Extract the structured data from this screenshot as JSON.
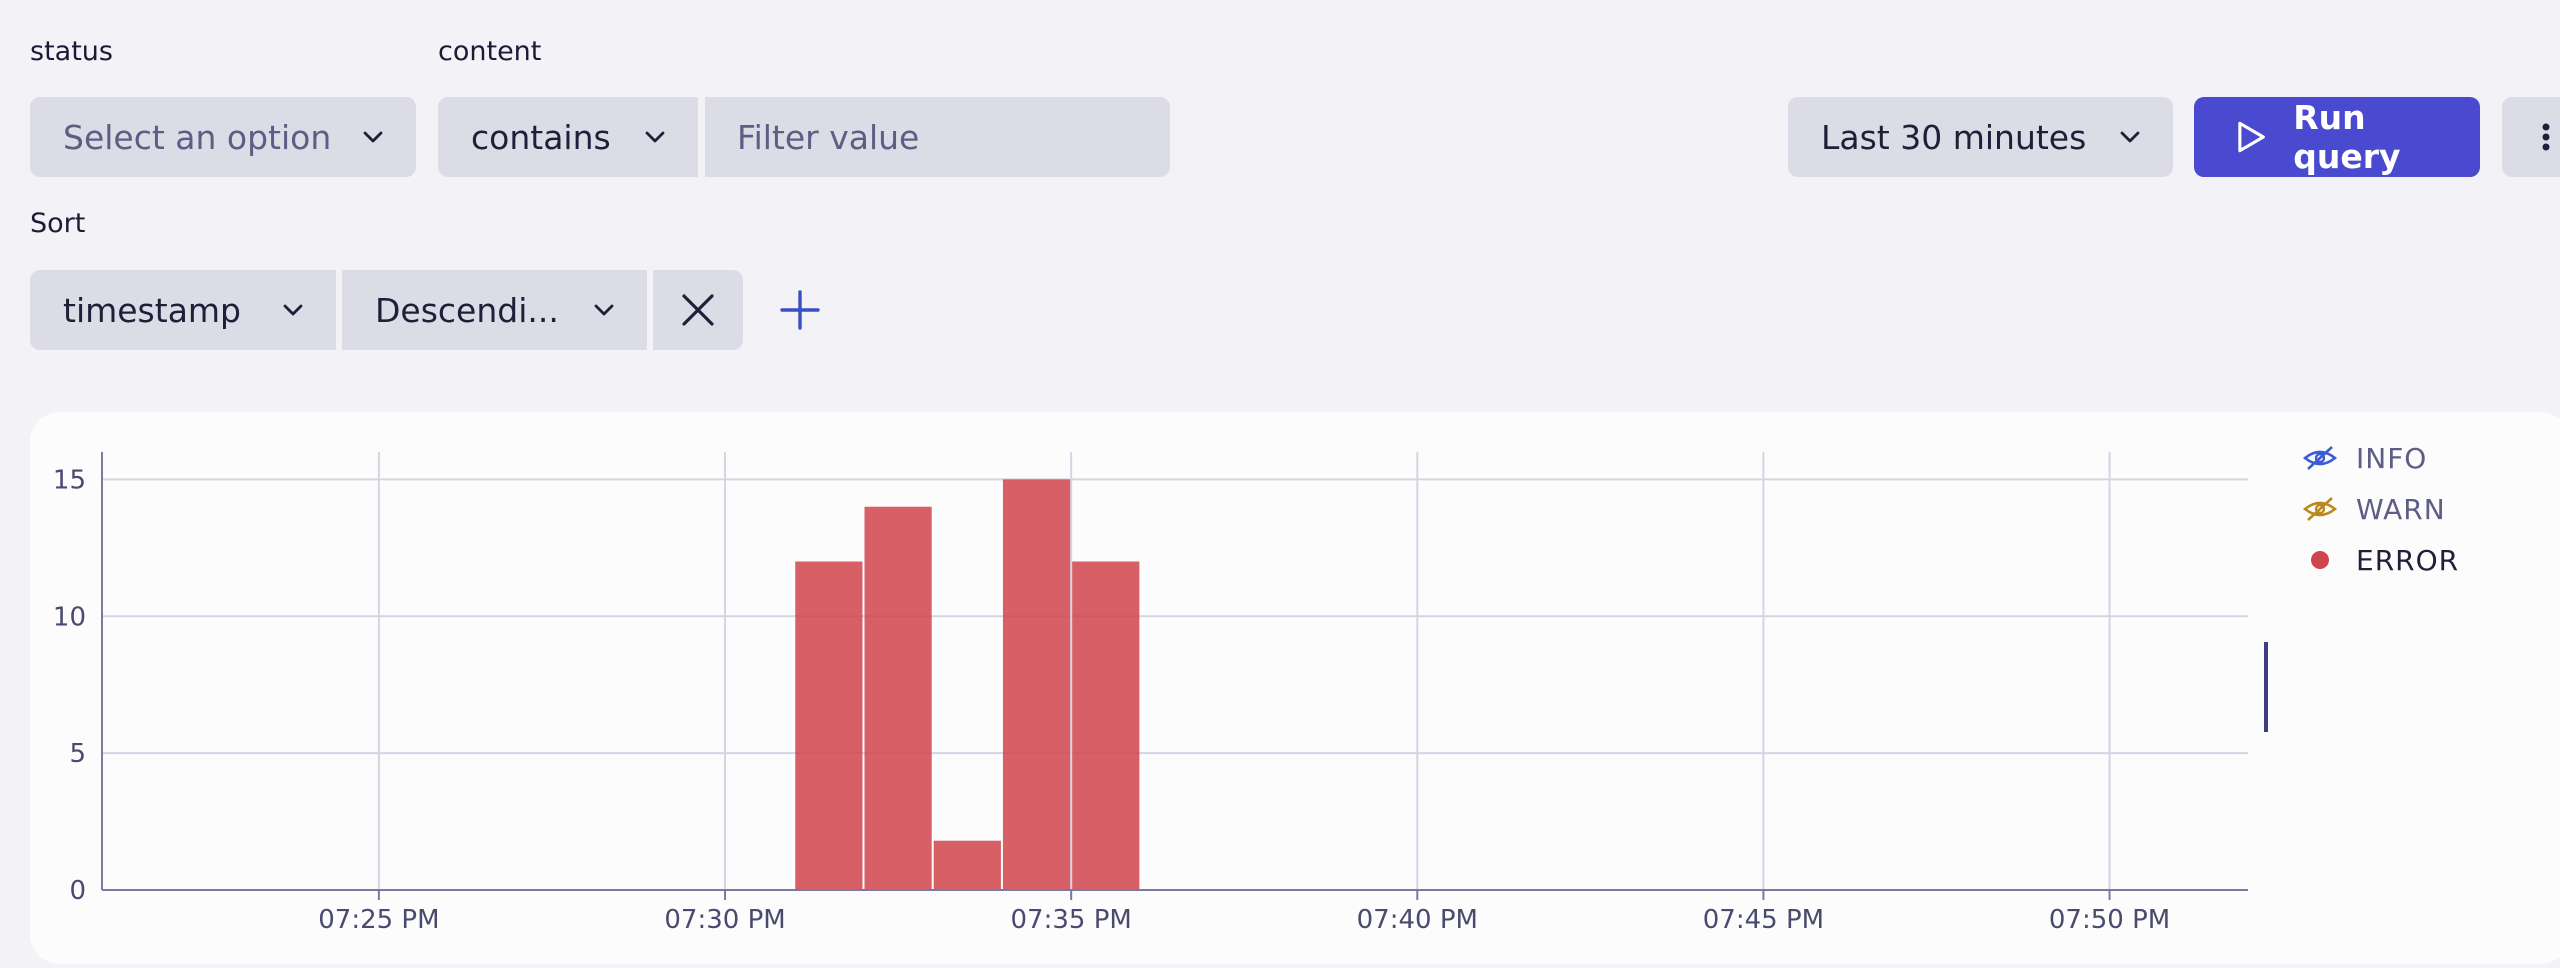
{
  "filters": {
    "status_label": "status",
    "status_placeholder": "Select an option",
    "content_label": "content",
    "content_operator": "contains",
    "filter_value_placeholder": "Filter value"
  },
  "toolbar": {
    "timeframe": "Last 30 minutes",
    "run_label": "Run query"
  },
  "sort": {
    "label": "Sort",
    "field": "timestamp",
    "direction": "Descendi..."
  },
  "chart_data": {
    "type": "bar",
    "x_tick_labels": [
      "07:25 PM",
      "07:30 PM",
      "07:35 PM",
      "07:40 PM",
      "07:45 PM",
      "07:50 PM"
    ],
    "y_ticks": [
      0,
      5,
      10,
      15
    ],
    "ylim": [
      0,
      16
    ],
    "xlim_minutes": [
      -4,
      27
    ],
    "bins": [
      {
        "start_min": 6,
        "end_min": 7,
        "value": 12
      },
      {
        "start_min": 7,
        "end_min": 8,
        "value": 14
      },
      {
        "start_min": 8,
        "end_min": 9,
        "value": 1.8
      },
      {
        "start_min": 9,
        "end_min": 10,
        "value": 15
      },
      {
        "start_min": 10,
        "end_min": 11,
        "value": 12
      }
    ],
    "series": [
      {
        "name": "INFO",
        "color": "#3d5bd6",
        "hidden": true
      },
      {
        "name": "WARN",
        "color": "#b98a1a",
        "hidden": true
      },
      {
        "name": "ERROR",
        "color": "#d0444c",
        "hidden": false
      }
    ],
    "bar_color": "#d0444c",
    "legend_position": "right"
  }
}
